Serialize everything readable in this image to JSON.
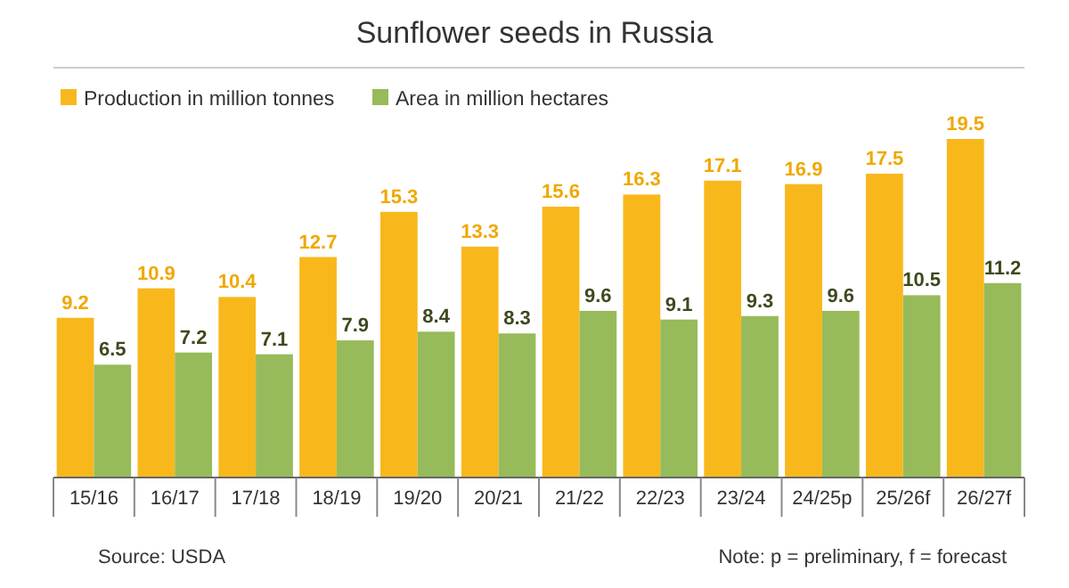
{
  "chart_data": {
    "type": "bar",
    "title": "Sunflower seeds in Russia",
    "categories": [
      "15/16",
      "16/17",
      "17/18",
      "18/19",
      "19/20",
      "20/21",
      "21/22",
      "22/23",
      "23/24",
      "24/25p",
      "25/26f",
      "26/27f"
    ],
    "series": [
      {
        "name": "Production in million tonnes",
        "color": "#f8b81c",
        "values": [
          9.2,
          10.9,
          10.4,
          12.7,
          15.3,
          13.3,
          15.6,
          16.3,
          17.1,
          16.9,
          17.5,
          19.5
        ]
      },
      {
        "name": "Area in million hectares",
        "color": "#97bb5a",
        "values": [
          6.5,
          7.2,
          7.1,
          7.9,
          8.4,
          8.3,
          9.6,
          9.1,
          9.3,
          9.6,
          10.5,
          11.2
        ]
      }
    ],
    "data_labels": true,
    "legend": "top left",
    "annotations": [
      "Source: USDA",
      "Note: p = preliminary, f = forecast"
    ]
  }
}
